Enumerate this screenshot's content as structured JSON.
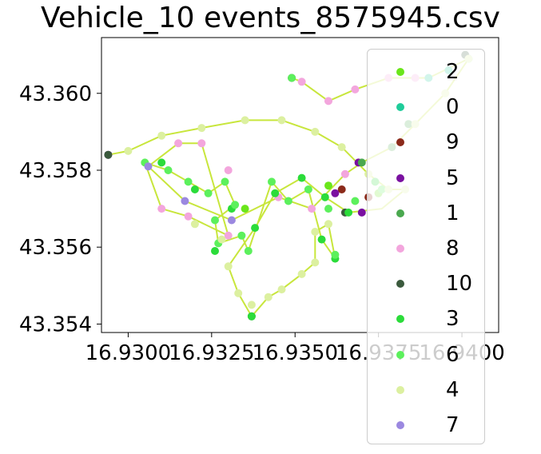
{
  "chart_data": {
    "type": "scatter",
    "title": "Vehicle_10 events_8575945.csv",
    "xlabel": "",
    "ylabel": "",
    "xlim": [
      16.9292,
      16.9411
    ],
    "ylim": [
      43.35378,
      43.36145
    ],
    "x_ticks": [
      "16.9300",
      "16.9325",
      "16.9350",
      "16.9375",
      "16.9400"
    ],
    "x_tick_values": [
      16.93,
      16.9325,
      16.935,
      16.9375,
      16.94
    ],
    "y_ticks": [
      "43.354",
      "43.356",
      "43.358",
      "43.360"
    ],
    "y_tick_values": [
      43.354,
      43.356,
      43.358,
      43.36
    ],
    "legend_position": "right",
    "series": [
      {
        "name": "2",
        "color": "#6ae61a",
        "points": [
          [
            16.9335,
            43.357
          ],
          [
            16.936,
            43.3576
          ],
          [
            16.9375,
            43.3574
          ]
        ]
      },
      {
        "name": "0",
        "color": "#1fcc9a",
        "points": [
          [
            16.939,
            43.3604
          ],
          [
            16.9396,
            43.3606
          ],
          [
            16.9402,
            43.3609
          ]
        ]
      },
      {
        "name": "9",
        "color": "#8b2a1a",
        "points": [
          [
            16.9364,
            43.3575
          ],
          [
            16.9372,
            43.3573
          ]
        ]
      },
      {
        "name": "5",
        "color": "#7a10a0",
        "points": [
          [
            16.9294,
            43.3584
          ],
          [
            16.9362,
            43.3574
          ],
          [
            16.937,
            43.3569
          ],
          [
            16.9369,
            43.3582
          ]
        ]
      },
      {
        "name": "1",
        "color": "#4aa84f",
        "points": [
          [
            16.937,
            43.3582
          ],
          [
            16.9379,
            43.3586
          ],
          [
            16.9384,
            43.3592
          ]
        ]
      },
      {
        "name": "8",
        "color": "#f3a6dd",
        "points": [
          [
            16.9352,
            43.3603
          ],
          [
            16.936,
            43.3598
          ],
          [
            16.9368,
            43.3601
          ],
          [
            16.9378,
            43.3604
          ],
          [
            16.9386,
            43.3604
          ],
          [
            16.9315,
            43.3587
          ],
          [
            16.9322,
            43.3587
          ],
          [
            16.933,
            43.358
          ],
          [
            16.931,
            43.357
          ],
          [
            16.9318,
            43.3568
          ],
          [
            16.933,
            43.3563
          ],
          [
            16.9355,
            43.357
          ],
          [
            16.9365,
            43.3579
          ],
          [
            16.9345,
            43.3573
          ]
        ]
      },
      {
        "name": "10",
        "color": "#3b5a3d",
        "points": [
          [
            16.9294,
            43.3584
          ],
          [
            16.9349,
            43.3604
          ],
          [
            16.9337,
            43.3542
          ],
          [
            16.9401,
            43.361
          ],
          [
            16.9365,
            43.3569
          ]
        ]
      },
      {
        "name": "3",
        "color": "#2bdc3a",
        "points": [
          [
            16.931,
            43.3582
          ],
          [
            16.932,
            43.3575
          ],
          [
            16.9331,
            43.357
          ],
          [
            16.9338,
            43.3565
          ],
          [
            16.9326,
            43.3559
          ],
          [
            16.9344,
            43.3574
          ],
          [
            16.9352,
            43.3578
          ],
          [
            16.9359,
            43.3573
          ],
          [
            16.9366,
            43.3569
          ],
          [
            16.9374,
            43.3577
          ],
          [
            16.9358,
            43.3562
          ],
          [
            16.9362,
            43.3557
          ],
          [
            16.9337,
            43.3542
          ]
        ]
      },
      {
        "name": "6",
        "color": "#5cf05c",
        "points": [
          [
            16.9305,
            43.3582
          ],
          [
            16.9312,
            43.358
          ],
          [
            16.9318,
            43.3577
          ],
          [
            16.9324,
            43.3574
          ],
          [
            16.9329,
            43.3577
          ],
          [
            16.9332,
            43.3571
          ],
          [
            16.9326,
            43.3567
          ],
          [
            16.9327,
            43.3561
          ],
          [
            16.9334,
            43.3563
          ],
          [
            16.9336,
            43.3559
          ],
          [
            16.9343,
            43.3577
          ],
          [
            16.9348,
            43.3572
          ],
          [
            16.9354,
            43.3575
          ],
          [
            16.936,
            43.357
          ],
          [
            16.9368,
            43.3572
          ],
          [
            16.9376,
            43.3575
          ],
          [
            16.9362,
            43.3558
          ],
          [
            16.9349,
            43.3604
          ]
        ]
      },
      {
        "name": "4",
        "color": "#dcf0a0",
        "points": [
          [
            16.93,
            43.3585
          ],
          [
            16.931,
            43.3589
          ],
          [
            16.9322,
            43.3591
          ],
          [
            16.9335,
            43.3593
          ],
          [
            16.9346,
            43.3593
          ],
          [
            16.9356,
            43.359
          ],
          [
            16.9364,
            43.3586
          ],
          [
            16.9372,
            43.3579
          ],
          [
            16.9378,
            43.3575
          ],
          [
            16.9328,
            43.3562
          ],
          [
            16.933,
            43.3555
          ],
          [
            16.9333,
            43.3548
          ],
          [
            16.9337,
            43.3545
          ],
          [
            16.9342,
            43.3547
          ],
          [
            16.9346,
            43.3549
          ],
          [
            16.9352,
            43.3553
          ],
          [
            16.9356,
            43.3556
          ],
          [
            16.9356,
            43.3564
          ],
          [
            16.936,
            43.3566
          ],
          [
            16.9386,
            43.3592
          ],
          [
            16.9395,
            43.36
          ],
          [
            16.9402,
            43.3609
          ],
          [
            16.9383,
            43.3575
          ],
          [
            16.932,
            43.3566
          ]
        ]
      },
      {
        "name": "7",
        "color": "#9b88e0",
        "points": [
          [
            16.9306,
            43.3581
          ],
          [
            16.9317,
            43.3572
          ],
          [
            16.9331,
            43.3567
          ]
        ]
      }
    ],
    "path": [
      [
        16.9294,
        43.3584
      ],
      [
        16.93,
        43.3585
      ],
      [
        16.931,
        43.3589
      ],
      [
        16.9322,
        43.3591
      ],
      [
        16.9335,
        43.3593
      ],
      [
        16.9346,
        43.3593
      ],
      [
        16.9356,
        43.359
      ],
      [
        16.9364,
        43.3586
      ],
      [
        16.9372,
        43.3579
      ],
      [
        16.9378,
        43.3575
      ],
      [
        16.9383,
        43.3575
      ],
      [
        16.9376,
        43.357
      ],
      [
        16.9366,
        43.3569
      ],
      [
        16.9359,
        43.3573
      ],
      [
        16.9352,
        43.3578
      ],
      [
        16.9344,
        43.3574
      ],
      [
        16.9338,
        43.3565
      ],
      [
        16.933,
        43.3555
      ],
      [
        16.9333,
        43.3548
      ],
      [
        16.9337,
        43.3542
      ],
      [
        16.9342,
        43.3547
      ],
      [
        16.9346,
        43.3549
      ],
      [
        16.9352,
        43.3553
      ],
      [
        16.9356,
        43.3556
      ],
      [
        16.9356,
        43.3564
      ],
      [
        16.936,
        43.3566
      ],
      [
        16.9362,
        43.3557
      ],
      [
        16.9358,
        43.3562
      ],
      [
        16.9354,
        43.3575
      ],
      [
        16.9348,
        43.3572
      ],
      [
        16.9343,
        43.3577
      ],
      [
        16.9336,
        43.3559
      ],
      [
        16.9334,
        43.3563
      ],
      [
        16.9327,
        43.3561
      ],
      [
        16.9326,
        43.3567
      ],
      [
        16.9332,
        43.3571
      ],
      [
        16.9329,
        43.3577
      ],
      [
        16.9324,
        43.3574
      ],
      [
        16.9318,
        43.3577
      ],
      [
        16.9312,
        43.358
      ],
      [
        16.9305,
        43.3582
      ],
      [
        16.931,
        43.357
      ],
      [
        16.9318,
        43.3568
      ],
      [
        16.933,
        43.3563
      ],
      [
        16.9322,
        43.3587
      ],
      [
        16.9315,
        43.3587
      ],
      [
        16.9306,
        43.3581
      ],
      [
        16.9317,
        43.3572
      ],
      [
        16.9331,
        43.3567
      ],
      [
        16.9345,
        43.3573
      ],
      [
        16.9355,
        43.357
      ],
      [
        16.9365,
        43.3579
      ],
      [
        16.937,
        43.3582
      ],
      [
        16.9379,
        43.3586
      ],
      [
        16.9386,
        43.3592
      ],
      [
        16.9395,
        43.36
      ],
      [
        16.9402,
        43.3609
      ],
      [
        16.939,
        43.3604
      ],
      [
        16.9378,
        43.3604
      ],
      [
        16.9368,
        43.3601
      ],
      [
        16.936,
        43.3598
      ],
      [
        16.9352,
        43.3603
      ],
      [
        16.9349,
        43.3604
      ]
    ]
  }
}
